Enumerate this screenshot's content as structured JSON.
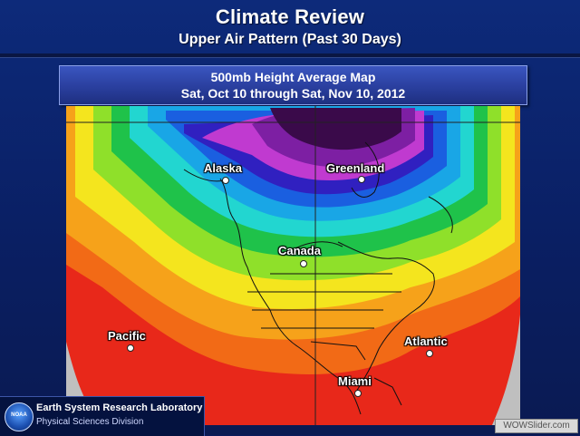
{
  "slide": {
    "title": "Climate Review",
    "subtitle": "Upper Air Pattern (Past 30 Days)"
  },
  "map_header": {
    "line1": "500mb Height Average Map",
    "line2": "Sat, Oct 10 through Sat, Nov 10, 2012"
  },
  "locations": [
    {
      "label": "Alaska"
    },
    {
      "label": "Greenland"
    },
    {
      "label": "Canada"
    },
    {
      "label": "Pacific"
    },
    {
      "label": "Atlantic"
    },
    {
      "label": "Miami"
    }
  ],
  "contour_colors": {
    "low_core": "#3a0a4a",
    "purple": "#7d1fa3",
    "magenta": "#c03ad0",
    "indigo": "#3020c0",
    "blue": "#1a5fe0",
    "cyan": "#19a6e6",
    "aqua": "#22d6d0",
    "green": "#1fc24a",
    "lime": "#8fe02a",
    "yellow": "#f4e51e",
    "orange": "#f6a21a",
    "orange_red": "#f26a16",
    "red": "#e8281a"
  },
  "footer": {
    "lab_logo_text": "NOAA",
    "lab_name": "Earth System Research Laboratory",
    "lab_division": "Physical Sciences Division"
  },
  "watermark": "WOWSlider.com"
}
